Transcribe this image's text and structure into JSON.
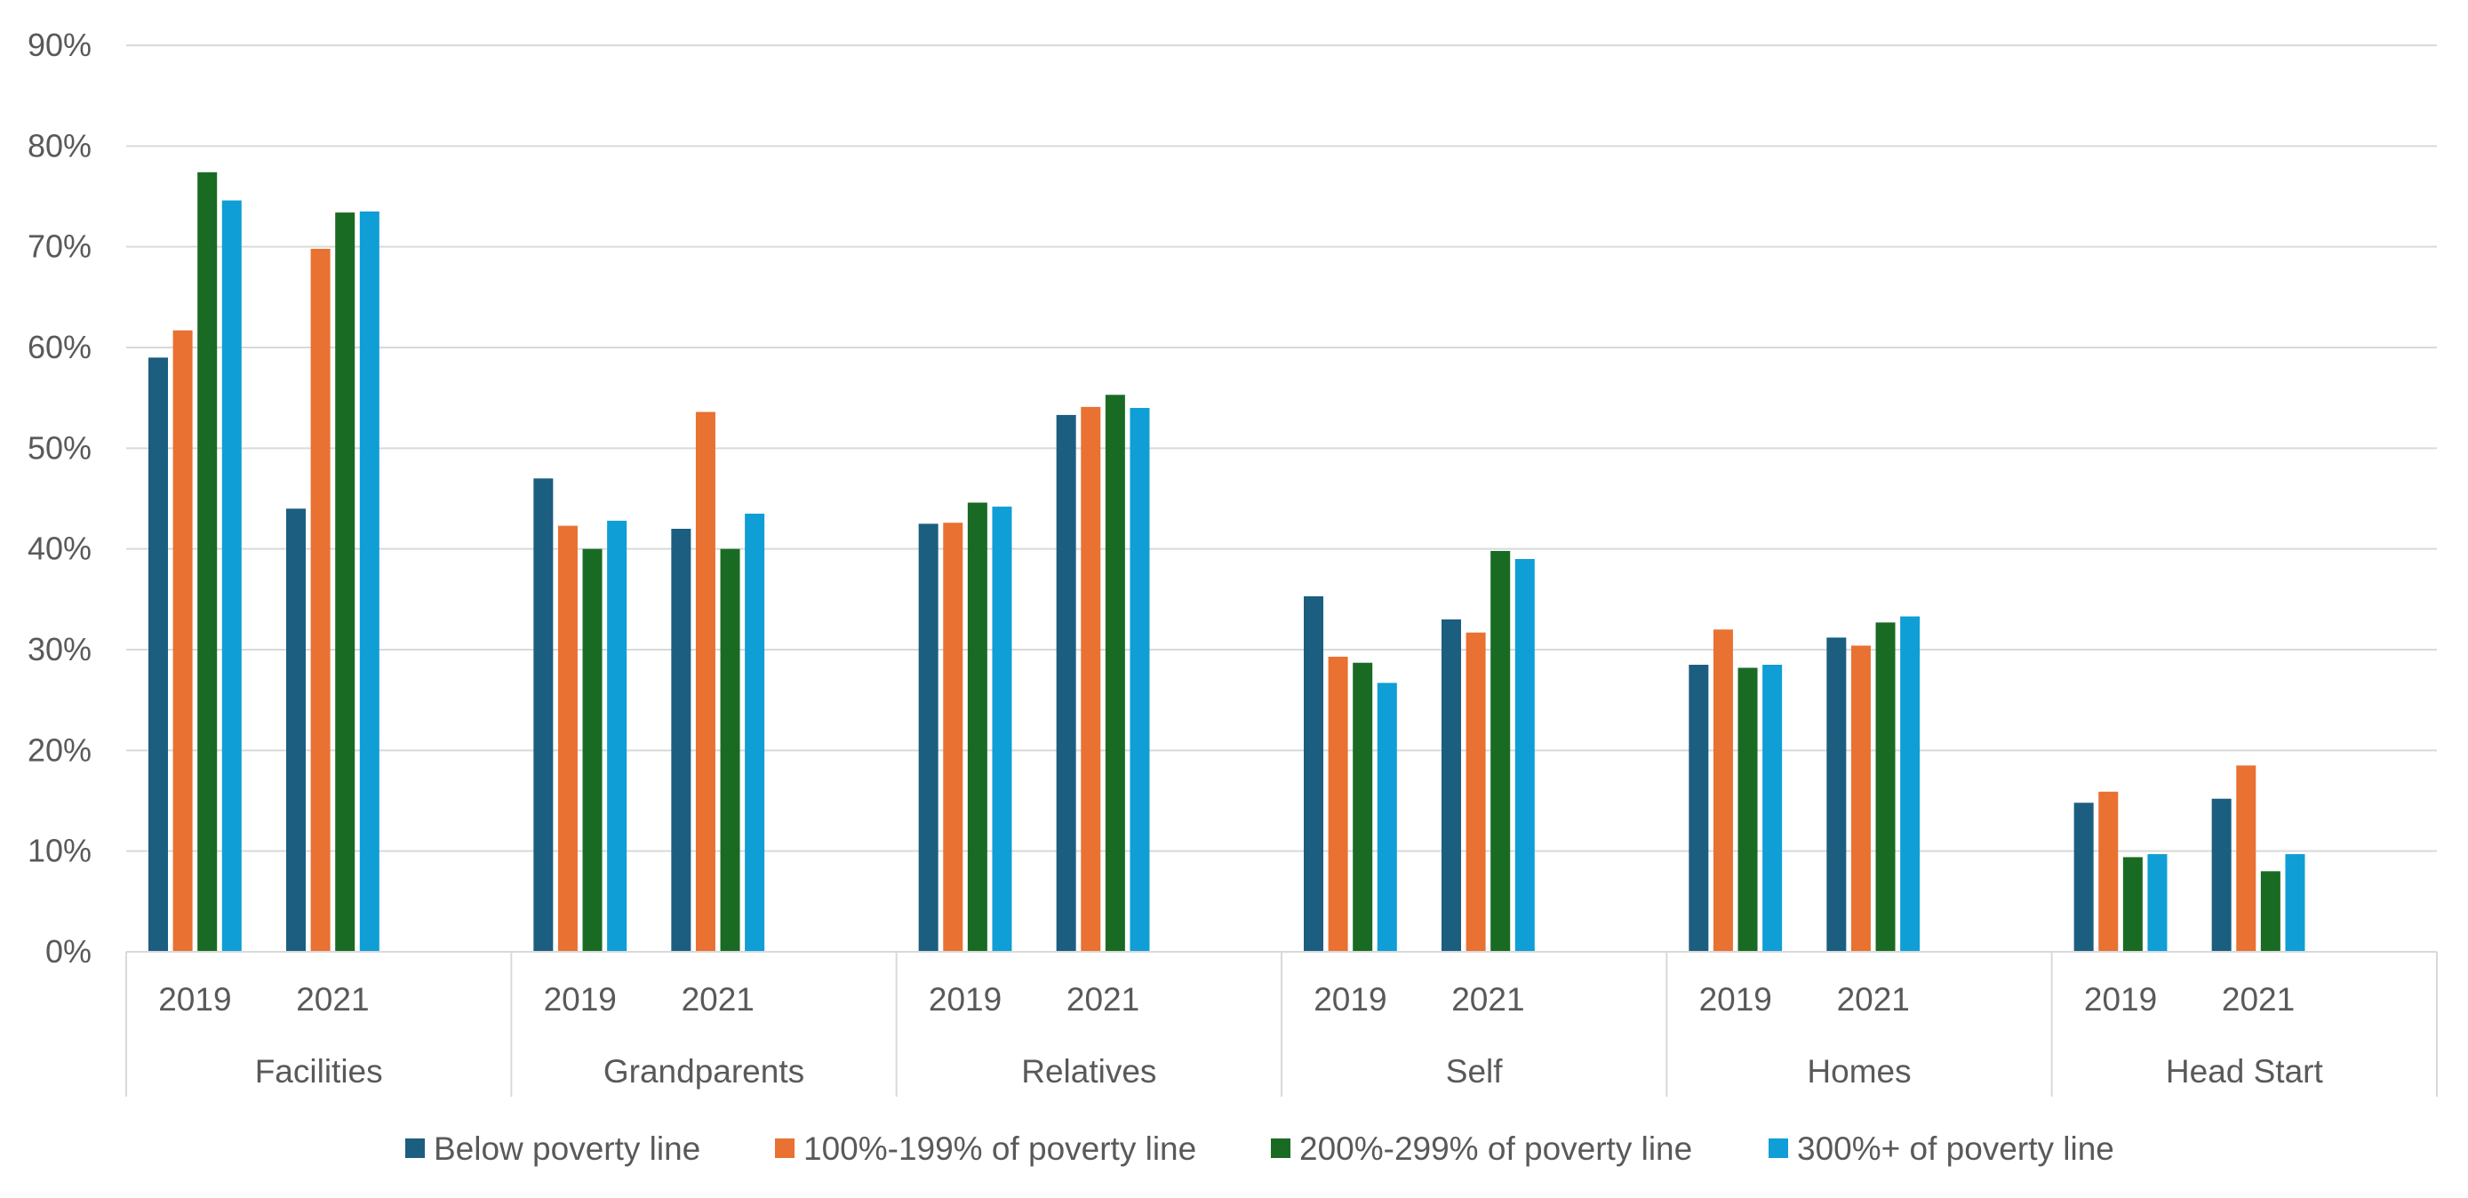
{
  "chart_data": {
    "type": "bar",
    "title": "",
    "xlabel": "",
    "ylabel": "",
    "ylim": [
      0,
      90
    ],
    "yticks": [
      "0%",
      "10%",
      "20%",
      "30%",
      "40%",
      "50%",
      "60%",
      "70%",
      "80%",
      "90%"
    ],
    "grid": true,
    "legend_position": "bottom",
    "groups": [
      "Facilities",
      "Grandparents",
      "Relatives",
      "Self",
      "Homes",
      "Head Start"
    ],
    "years": [
      "2019",
      "2021"
    ],
    "series": [
      {
        "name": "Below poverty line",
        "color": "#1b5e80",
        "values": [
          [
            59,
            44
          ],
          [
            47,
            42
          ],
          [
            42.5,
            53.3
          ],
          [
            35.3,
            33
          ],
          [
            28.5,
            31.2
          ],
          [
            14.8,
            15.2
          ]
        ]
      },
      {
        "name": "100%-199% of poverty line",
        "color": "#e97132",
        "values": [
          [
            61.7,
            69.8
          ],
          [
            42.3,
            53.6
          ],
          [
            42.6,
            54.1
          ],
          [
            29.3,
            31.7
          ],
          [
            32,
            30.4
          ],
          [
            15.9,
            18.5
          ]
        ]
      },
      {
        "name": "200%-299% of poverty line",
        "color": "#196b24",
        "values": [
          [
            77.4,
            73.4
          ],
          [
            40,
            40
          ],
          [
            44.6,
            55.3
          ],
          [
            28.7,
            39.8
          ],
          [
            28.2,
            32.7
          ],
          [
            9.4,
            8
          ]
        ]
      },
      {
        "name": "300%+ of poverty line",
        "color": "#0f9ed5",
        "values": [
          [
            74.6,
            73.5
          ],
          [
            42.8,
            43.5
          ],
          [
            44.2,
            54
          ],
          [
            26.7,
            39
          ],
          [
            28.5,
            33.3
          ],
          [
            9.7,
            9.7
          ]
        ]
      }
    ]
  }
}
